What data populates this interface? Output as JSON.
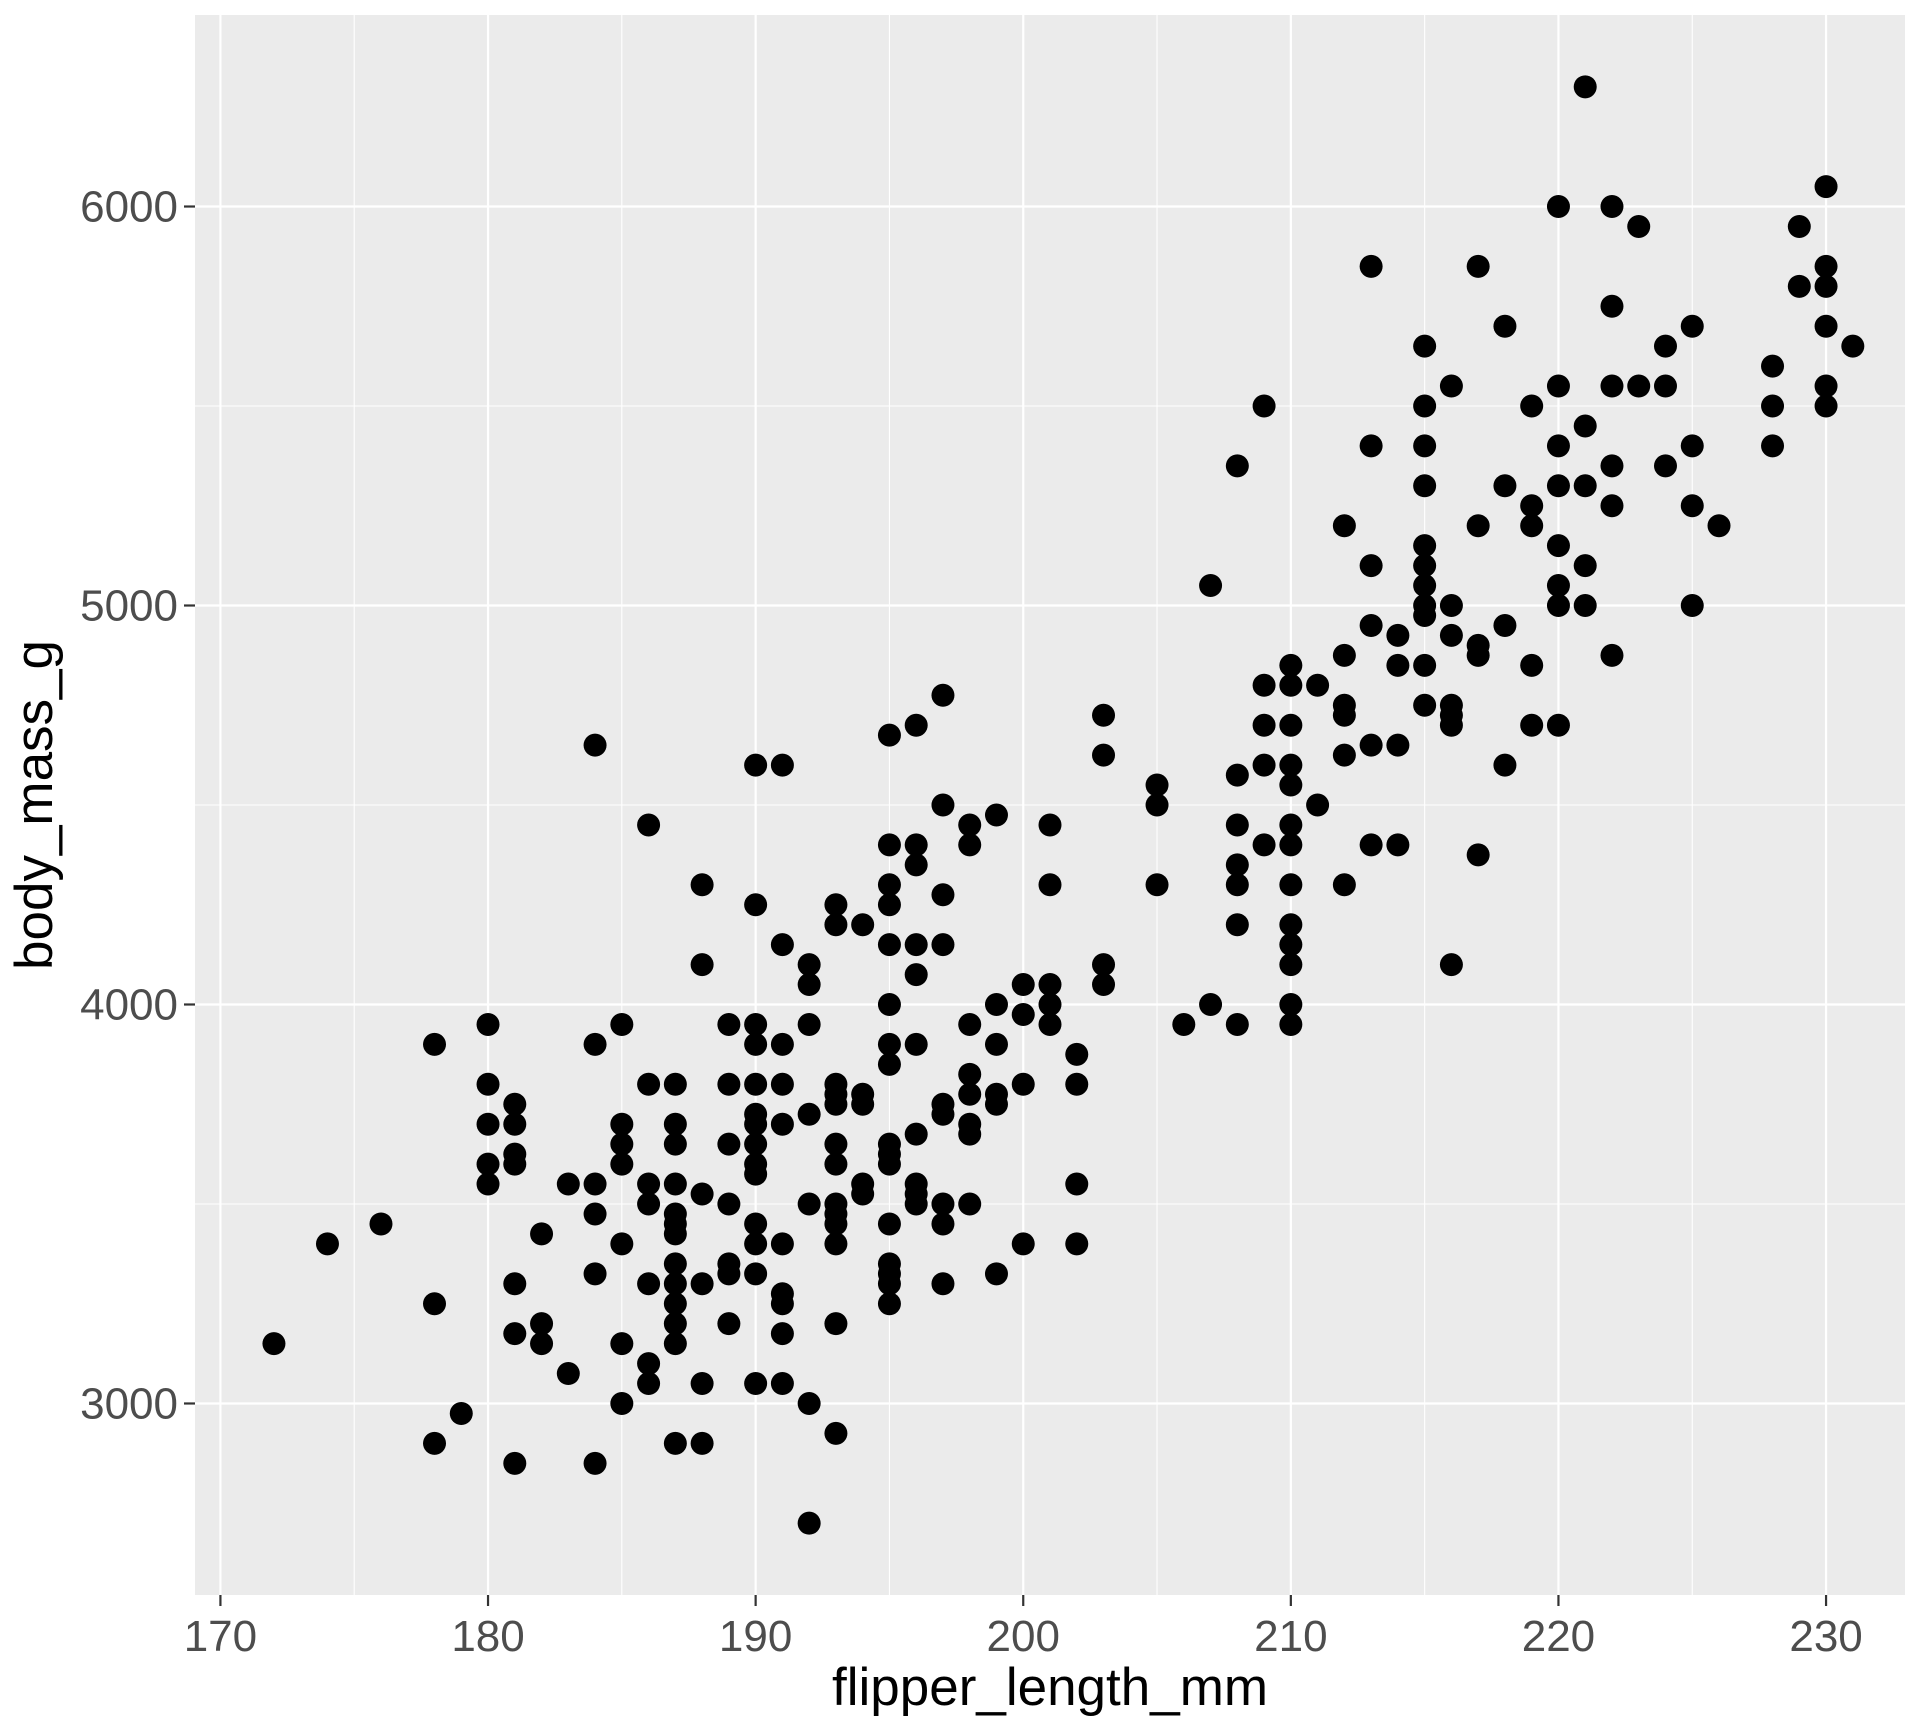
{
  "chart_data": {
    "type": "scatter",
    "xlabel": "flipper_length_mm",
    "ylabel": "body_mass_g",
    "xlim": [
      169.05,
      232.95
    ],
    "ylim": [
      2520,
      6480
    ],
    "x_ticks": [
      170,
      180,
      190,
      200,
      210,
      220,
      230
    ],
    "y_ticks": [
      3000,
      4000,
      5000,
      6000
    ],
    "grid": true,
    "point_color": "#000000",
    "panel_color": "#EBEBEB",
    "points": [
      [
        172,
        3150
      ],
      [
        174,
        3400
      ],
      [
        176,
        3450
      ],
      [
        178,
        3900
      ],
      [
        178,
        3250
      ],
      [
        178,
        2900
      ],
      [
        179,
        2975
      ],
      [
        180,
        3950
      ],
      [
        180,
        3800
      ],
      [
        180,
        3700
      ],
      [
        180,
        3600
      ],
      [
        180,
        3550
      ],
      [
        181,
        3750
      ],
      [
        181,
        3700
      ],
      [
        181,
        3625
      ],
      [
        181,
        3600
      ],
      [
        181,
        3300
      ],
      [
        181,
        3175
      ],
      [
        181,
        2850
      ],
      [
        182,
        3425
      ],
      [
        182,
        3200
      ],
      [
        182,
        3150
      ],
      [
        183,
        3550
      ],
      [
        183,
        3075
      ],
      [
        184,
        4650
      ],
      [
        184,
        3900
      ],
      [
        184,
        3550
      ],
      [
        184,
        3475
      ],
      [
        184,
        3325
      ],
      [
        184,
        2850
      ],
      [
        185,
        3950
      ],
      [
        185,
        3700
      ],
      [
        185,
        3650
      ],
      [
        185,
        3600
      ],
      [
        185,
        3400
      ],
      [
        185,
        3150
      ],
      [
        185,
        3000
      ],
      [
        186,
        4450
      ],
      [
        186,
        3800
      ],
      [
        186,
        3550
      ],
      [
        186,
        3500
      ],
      [
        186,
        3300
      ],
      [
        186,
        3100
      ],
      [
        186,
        3050
      ],
      [
        187,
        3800
      ],
      [
        187,
        3700
      ],
      [
        187,
        3650
      ],
      [
        187,
        3550
      ],
      [
        187,
        3475
      ],
      [
        187,
        3450
      ],
      [
        187,
        3425
      ],
      [
        187,
        3350
      ],
      [
        187,
        3300
      ],
      [
        187,
        3250
      ],
      [
        187,
        3200
      ],
      [
        187,
        3150
      ],
      [
        187,
        2900
      ],
      [
        188,
        4300
      ],
      [
        188,
        4100
      ],
      [
        188,
        3525
      ],
      [
        188,
        3300
      ],
      [
        188,
        3050
      ],
      [
        188,
        2900
      ],
      [
        189,
        3950
      ],
      [
        189,
        3800
      ],
      [
        189,
        3650
      ],
      [
        189,
        3500
      ],
      [
        189,
        3350
      ],
      [
        189,
        3325
      ],
      [
        189,
        3200
      ],
      [
        190,
        4600
      ],
      [
        190,
        4250
      ],
      [
        190,
        3950
      ],
      [
        190,
        3900
      ],
      [
        190,
        3800
      ],
      [
        190,
        3725
      ],
      [
        190,
        3700
      ],
      [
        190,
        3650
      ],
      [
        190,
        3600
      ],
      [
        190,
        3575
      ],
      [
        190,
        3450
      ],
      [
        190,
        3400
      ],
      [
        190,
        3325
      ],
      [
        190,
        3050
      ],
      [
        191,
        4600
      ],
      [
        191,
        4150
      ],
      [
        191,
        3900
      ],
      [
        191,
        3800
      ],
      [
        191,
        3700
      ],
      [
        191,
        3400
      ],
      [
        191,
        3275
      ],
      [
        191,
        3250
      ],
      [
        191,
        3175
      ],
      [
        191,
        3050
      ],
      [
        192,
        4100
      ],
      [
        192,
        4050
      ],
      [
        192,
        3950
      ],
      [
        192,
        3725
      ],
      [
        192,
        3500
      ],
      [
        192,
        3000
      ],
      [
        192,
        2700
      ],
      [
        193,
        4250
      ],
      [
        193,
        4200
      ],
      [
        193,
        3800
      ],
      [
        193,
        3775
      ],
      [
        193,
        3750
      ],
      [
        193,
        3650
      ],
      [
        193,
        3600
      ],
      [
        193,
        3500
      ],
      [
        193,
        3475
      ],
      [
        193,
        3450
      ],
      [
        193,
        3400
      ],
      [
        193,
        3200
      ],
      [
        193,
        2925
      ],
      [
        194,
        4200
      ],
      [
        194,
        3775
      ],
      [
        194,
        3750
      ],
      [
        194,
        3550
      ],
      [
        194,
        3525
      ],
      [
        195,
        4675
      ],
      [
        195,
        4400
      ],
      [
        195,
        4300
      ],
      [
        195,
        4250
      ],
      [
        195,
        4150
      ],
      [
        195,
        4000
      ],
      [
        195,
        3900
      ],
      [
        195,
        3850
      ],
      [
        195,
        3650
      ],
      [
        195,
        3625
      ],
      [
        195,
        3600
      ],
      [
        195,
        3450
      ],
      [
        195,
        3350
      ],
      [
        195,
        3325
      ],
      [
        195,
        3300
      ],
      [
        195,
        3250
      ],
      [
        196,
        4700
      ],
      [
        196,
        4400
      ],
      [
        196,
        4350
      ],
      [
        196,
        4150
      ],
      [
        196,
        4075
      ],
      [
        196,
        3900
      ],
      [
        196,
        3675
      ],
      [
        196,
        3550
      ],
      [
        196,
        3525
      ],
      [
        196,
        3500
      ],
      [
        197,
        4775
      ],
      [
        197,
        4500
      ],
      [
        197,
        4275
      ],
      [
        197,
        4150
      ],
      [
        197,
        3750
      ],
      [
        197,
        3725
      ],
      [
        197,
        3500
      ],
      [
        197,
        3450
      ],
      [
        197,
        3300
      ],
      [
        198,
        4450
      ],
      [
        198,
        4400
      ],
      [
        198,
        3950
      ],
      [
        198,
        3825
      ],
      [
        198,
        3775
      ],
      [
        198,
        3700
      ],
      [
        198,
        3675
      ],
      [
        198,
        3500
      ],
      [
        199,
        4475
      ],
      [
        199,
        4000
      ],
      [
        199,
        3900
      ],
      [
        199,
        3775
      ],
      [
        199,
        3750
      ],
      [
        199,
        3325
      ],
      [
        200,
        4050
      ],
      [
        200,
        3975
      ],
      [
        200,
        3800
      ],
      [
        200,
        3400
      ],
      [
        201,
        4450
      ],
      [
        201,
        4300
      ],
      [
        201,
        4050
      ],
      [
        201,
        4000
      ],
      [
        201,
        3950
      ],
      [
        202,
        3875
      ],
      [
        202,
        3800
      ],
      [
        202,
        3550
      ],
      [
        202,
        3400
      ],
      [
        203,
        4725
      ],
      [
        203,
        4625
      ],
      [
        203,
        4100
      ],
      [
        203,
        4050
      ],
      [
        205,
        4550
      ],
      [
        205,
        4500
      ],
      [
        205,
        4300
      ],
      [
        206,
        3950
      ],
      [
        207,
        5050
      ],
      [
        207,
        4000
      ],
      [
        208,
        5350
      ],
      [
        208,
        4575
      ],
      [
        208,
        4450
      ],
      [
        208,
        4350
      ],
      [
        208,
        4300
      ],
      [
        208,
        4200
      ],
      [
        208,
        3950
      ],
      [
        209,
        5500
      ],
      [
        209,
        4800
      ],
      [
        209,
        4700
      ],
      [
        209,
        4600
      ],
      [
        209,
        4400
      ],
      [
        210,
        4850
      ],
      [
        210,
        4800
      ],
      [
        210,
        4700
      ],
      [
        210,
        4600
      ],
      [
        210,
        4550
      ],
      [
        210,
        4450
      ],
      [
        210,
        4400
      ],
      [
        210,
        4300
      ],
      [
        210,
        4200
      ],
      [
        210,
        4150
      ],
      [
        210,
        4100
      ],
      [
        210,
        4000
      ],
      [
        210,
        3950
      ],
      [
        211,
        4800
      ],
      [
        211,
        4500
      ],
      [
        212,
        5200
      ],
      [
        212,
        4875
      ],
      [
        212,
        4750
      ],
      [
        212,
        4725
      ],
      [
        212,
        4625
      ],
      [
        212,
        4300
      ],
      [
        213,
        5850
      ],
      [
        213,
        5400
      ],
      [
        213,
        5100
      ],
      [
        213,
        4950
      ],
      [
        213,
        4650
      ],
      [
        213,
        4400
      ],
      [
        214,
        4925
      ],
      [
        214,
        4850
      ],
      [
        214,
        4650
      ],
      [
        214,
        4400
      ],
      [
        215,
        5650
      ],
      [
        215,
        5500
      ],
      [
        215,
        5400
      ],
      [
        215,
        5300
      ],
      [
        215,
        5150
      ],
      [
        215,
        5100
      ],
      [
        215,
        5050
      ],
      [
        215,
        5000
      ],
      [
        215,
        4975
      ],
      [
        215,
        4850
      ],
      [
        215,
        4750
      ],
      [
        216,
        5550
      ],
      [
        216,
        5000
      ],
      [
        216,
        4925
      ],
      [
        216,
        4750
      ],
      [
        216,
        4725
      ],
      [
        216,
        4700
      ],
      [
        216,
        4100
      ],
      [
        217,
        5850
      ],
      [
        217,
        5200
      ],
      [
        217,
        4900
      ],
      [
        217,
        4875
      ],
      [
        217,
        4375
      ],
      [
        218,
        5700
      ],
      [
        218,
        5300
      ],
      [
        218,
        4950
      ],
      [
        218,
        4600
      ],
      [
        219,
        5500
      ],
      [
        219,
        5250
      ],
      [
        219,
        5200
      ],
      [
        219,
        4850
      ],
      [
        219,
        4700
      ],
      [
        220,
        6000
      ],
      [
        220,
        5550
      ],
      [
        220,
        5400
      ],
      [
        220,
        5300
      ],
      [
        220,
        5150
      ],
      [
        220,
        5050
      ],
      [
        220,
        5000
      ],
      [
        220,
        4700
      ],
      [
        221,
        6300
      ],
      [
        221,
        5450
      ],
      [
        221,
        5300
      ],
      [
        221,
        5100
      ],
      [
        221,
        5000
      ],
      [
        222,
        6000
      ],
      [
        222,
        5750
      ],
      [
        222,
        5550
      ],
      [
        222,
        5350
      ],
      [
        222,
        5250
      ],
      [
        222,
        4875
      ],
      [
        223,
        5950
      ],
      [
        223,
        5550
      ],
      [
        224,
        5650
      ],
      [
        224,
        5550
      ],
      [
        224,
        5350
      ],
      [
        225,
        5700
      ],
      [
        225,
        5400
      ],
      [
        225,
        5250
      ],
      [
        225,
        5000
      ],
      [
        226,
        5200
      ],
      [
        228,
        5600
      ],
      [
        228,
        5500
      ],
      [
        228,
        5400
      ],
      [
        229,
        5950
      ],
      [
        229,
        5800
      ],
      [
        230,
        6050
      ],
      [
        230,
        5850
      ],
      [
        230,
        5800
      ],
      [
        230,
        5700
      ],
      [
        230,
        5550
      ],
      [
        230,
        5500
      ],
      [
        231,
        5650
      ]
    ]
  }
}
